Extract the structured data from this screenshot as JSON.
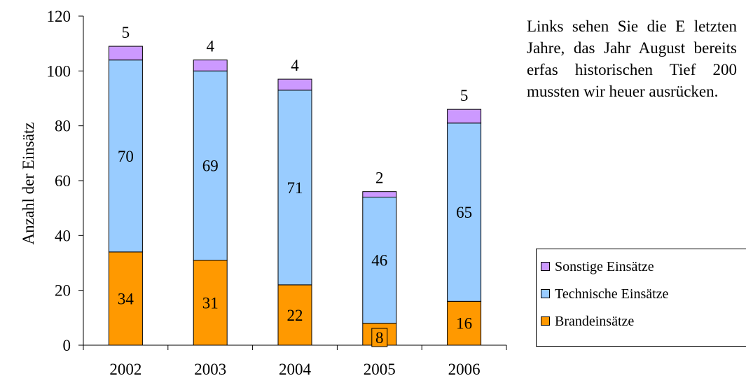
{
  "chart_data": {
    "type": "bar",
    "stacked": true,
    "categories": [
      "2002",
      "2003",
      "2004",
      "2005",
      "2006"
    ],
    "series": [
      {
        "name": "Brandeinsätze",
        "color": "#ff9900",
        "values": [
          34,
          31,
          22,
          8,
          16
        ]
      },
      {
        "name": "Technische Einsätze",
        "color": "#99ccff",
        "values": [
          70,
          69,
          71,
          46,
          65
        ]
      },
      {
        "name": "Sonstige Einsätze",
        "color": "#cc99ff",
        "values": [
          5,
          4,
          4,
          2,
          5
        ]
      }
    ],
    "ylabel": "Anzahl der Einsätz",
    "ylim": [
      0,
      120
    ],
    "yticks": [
      0,
      20,
      40,
      60,
      80,
      100,
      120
    ],
    "grid": false,
    "legend_placement": "right",
    "legend_order": [
      "Sonstige Einsätze",
      "Technische Einsätze",
      "Brandeinsätze"
    ]
  },
  "side_text": "Links sehen Sie die E letzten Jahre, das Jahr August bereits erfas historischen Tief 200 mussten wir heuer ausrücken."
}
